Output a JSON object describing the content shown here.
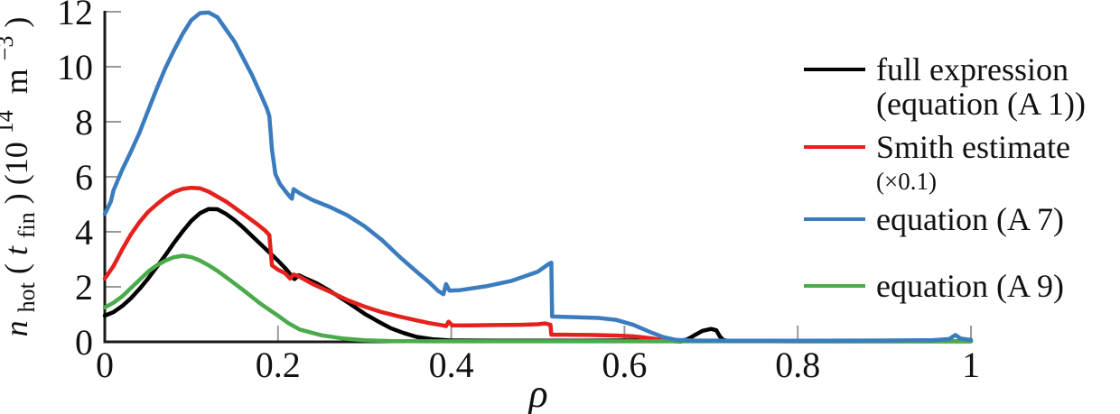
{
  "figure": {
    "background": "#ffffff",
    "axis_color": "#1a1a1a",
    "tick_color": "#999999"
  },
  "chart_data": {
    "type": "line",
    "title": "",
    "xlabel": "ρ",
    "ylabel": "n_hot(t_fin) (10^14 m^-3)",
    "ylabel_parts": [
      "n",
      "hot",
      "(",
      "t",
      "fin",
      ") (10",
      "14",
      " m",
      "−3",
      ")"
    ],
    "xlim": [
      0,
      1
    ],
    "ylim": [
      0,
      12
    ],
    "x_ticks": [
      0,
      0.2,
      0.4,
      0.6,
      0.8,
      1
    ],
    "x_tick_labels": [
      "0",
      "0.2",
      "0.4",
      "0.6",
      "0.8",
      "1"
    ],
    "y_ticks": [
      0,
      2,
      4,
      6,
      8,
      10,
      12
    ],
    "y_tick_labels": [
      "0",
      "2",
      "4",
      "6",
      "8",
      "10",
      "12"
    ],
    "grid": false,
    "legend_position": "right",
    "series": [
      {
        "name": "full expression (equation (A 1))",
        "slug": "full-expression",
        "color": "#000000",
        "points": [
          [
            0,
            0.95
          ],
          [
            0.01,
            1.08
          ],
          [
            0.02,
            1.3
          ],
          [
            0.03,
            1.58
          ],
          [
            0.04,
            1.92
          ],
          [
            0.05,
            2.3
          ],
          [
            0.06,
            2.72
          ],
          [
            0.07,
            3.15
          ],
          [
            0.08,
            3.6
          ],
          [
            0.09,
            4.02
          ],
          [
            0.1,
            4.4
          ],
          [
            0.11,
            4.68
          ],
          [
            0.12,
            4.83
          ],
          [
            0.13,
            4.82
          ],
          [
            0.14,
            4.65
          ],
          [
            0.15,
            4.42
          ],
          [
            0.16,
            4.15
          ],
          [
            0.17,
            3.85
          ],
          [
            0.18,
            3.55
          ],
          [
            0.19,
            3.25
          ],
          [
            0.2,
            2.95
          ],
          [
            0.21,
            2.62
          ],
          [
            0.216,
            2.38
          ],
          [
            0.219,
            2.28
          ],
          [
            0.224,
            2.42
          ],
          [
            0.23,
            2.33
          ],
          [
            0.245,
            2.12
          ],
          [
            0.26,
            1.85
          ],
          [
            0.28,
            1.45
          ],
          [
            0.3,
            1.02
          ],
          [
            0.315,
            0.75
          ],
          [
            0.33,
            0.5
          ],
          [
            0.345,
            0.32
          ],
          [
            0.36,
            0.18
          ],
          [
            0.38,
            0.09
          ],
          [
            0.4,
            0.05
          ],
          [
            0.45,
            0.04
          ],
          [
            0.5,
            0.04
          ],
          [
            0.55,
            0.04
          ],
          [
            0.6,
            0.05
          ],
          [
            0.64,
            0.05
          ],
          [
            0.665,
            0.05
          ],
          [
            0.672,
            0.08
          ],
          [
            0.682,
            0.26
          ],
          [
            0.69,
            0.4
          ],
          [
            0.7,
            0.47
          ],
          [
            0.706,
            0.42
          ],
          [
            0.71,
            0.2
          ],
          [
            0.714,
            0.07
          ],
          [
            0.72,
            0.03
          ],
          [
            0.8,
            0.02
          ],
          [
            0.9,
            0.02
          ],
          [
            1,
            0.02
          ]
        ]
      },
      {
        "name": "Smith estimate (×0.1)",
        "slug": "smith-estimate",
        "color": "#e4211c",
        "points": [
          [
            0,
            2.3
          ],
          [
            0.01,
            2.75
          ],
          [
            0.02,
            3.35
          ],
          [
            0.03,
            3.9
          ],
          [
            0.04,
            4.35
          ],
          [
            0.05,
            4.72
          ],
          [
            0.06,
            5.0
          ],
          [
            0.07,
            5.25
          ],
          [
            0.08,
            5.45
          ],
          [
            0.09,
            5.56
          ],
          [
            0.1,
            5.6
          ],
          [
            0.11,
            5.58
          ],
          [
            0.12,
            5.46
          ],
          [
            0.13,
            5.28
          ],
          [
            0.14,
            5.1
          ],
          [
            0.16,
            4.65
          ],
          [
            0.175,
            4.3
          ],
          [
            0.185,
            4.05
          ],
          [
            0.19,
            3.88
          ],
          [
            0.191,
            3.5
          ],
          [
            0.193,
            2.78
          ],
          [
            0.2,
            2.62
          ],
          [
            0.208,
            2.5
          ],
          [
            0.214,
            2.3
          ],
          [
            0.218,
            2.45
          ],
          [
            0.224,
            2.38
          ],
          [
            0.24,
            2.1
          ],
          [
            0.26,
            1.82
          ],
          [
            0.28,
            1.52
          ],
          [
            0.3,
            1.28
          ],
          [
            0.32,
            1.08
          ],
          [
            0.34,
            0.92
          ],
          [
            0.36,
            0.78
          ],
          [
            0.375,
            0.68
          ],
          [
            0.39,
            0.6
          ],
          [
            0.394,
            0.57
          ],
          [
            0.397,
            0.73
          ],
          [
            0.401,
            0.6
          ],
          [
            0.42,
            0.6
          ],
          [
            0.45,
            0.61
          ],
          [
            0.48,
            0.62
          ],
          [
            0.5,
            0.64
          ],
          [
            0.508,
            0.67
          ],
          [
            0.512,
            0.64
          ],
          [
            0.5145,
            0.62
          ],
          [
            0.5155,
            0.26
          ],
          [
            0.53,
            0.26
          ],
          [
            0.56,
            0.25
          ],
          [
            0.59,
            0.23
          ],
          [
            0.61,
            0.2
          ],
          [
            0.63,
            0.13
          ],
          [
            0.645,
            0.06
          ],
          [
            0.658,
            0.02
          ],
          [
            0.665,
            0.01
          ]
        ]
      },
      {
        "name": "equation (A 9)",
        "slug": "equation-a9",
        "color": "#4bab4b",
        "points": [
          [
            0,
            1.25
          ],
          [
            0.01,
            1.42
          ],
          [
            0.02,
            1.65
          ],
          [
            0.03,
            1.95
          ],
          [
            0.04,
            2.25
          ],
          [
            0.05,
            2.55
          ],
          [
            0.06,
            2.78
          ],
          [
            0.07,
            2.95
          ],
          [
            0.08,
            3.08
          ],
          [
            0.09,
            3.13
          ],
          [
            0.1,
            3.08
          ],
          [
            0.11,
            2.95
          ],
          [
            0.12,
            2.78
          ],
          [
            0.13,
            2.58
          ],
          [
            0.14,
            2.35
          ],
          [
            0.16,
            1.88
          ],
          [
            0.18,
            1.38
          ],
          [
            0.2,
            0.95
          ],
          [
            0.212,
            0.68
          ],
          [
            0.225,
            0.45
          ],
          [
            0.25,
            0.24
          ],
          [
            0.275,
            0.12
          ],
          [
            0.3,
            0.06
          ],
          [
            0.33,
            0.03
          ],
          [
            0.37,
            0.02
          ],
          [
            0.45,
            0.02
          ],
          [
            0.6,
            0.02
          ],
          [
            0.8,
            0.02
          ],
          [
            1,
            0.02
          ]
        ]
      },
      {
        "name": "equation (A 7)",
        "slug": "equation-a7",
        "color": "#3a7cbe",
        "points": [
          [
            0,
            4.65
          ],
          [
            0.004,
            4.9
          ],
          [
            0.007,
            5.1
          ],
          [
            0.01,
            5.5
          ],
          [
            0.02,
            6.25
          ],
          [
            0.03,
            6.9
          ],
          [
            0.04,
            7.6
          ],
          [
            0.05,
            8.4
          ],
          [
            0.06,
            9.2
          ],
          [
            0.07,
            9.95
          ],
          [
            0.08,
            10.6
          ],
          [
            0.09,
            11.2
          ],
          [
            0.1,
            11.7
          ],
          [
            0.11,
            11.95
          ],
          [
            0.12,
            11.97
          ],
          [
            0.13,
            11.8
          ],
          [
            0.14,
            11.35
          ],
          [
            0.15,
            10.9
          ],
          [
            0.16,
            10.3
          ],
          [
            0.17,
            9.7
          ],
          [
            0.18,
            9.0
          ],
          [
            0.187,
            8.5
          ],
          [
            0.19,
            8.2
          ],
          [
            0.193,
            7.0
          ],
          [
            0.197,
            6.1
          ],
          [
            0.202,
            5.75
          ],
          [
            0.208,
            5.5
          ],
          [
            0.213,
            5.3
          ],
          [
            0.216,
            5.2
          ],
          [
            0.218,
            5.55
          ],
          [
            0.225,
            5.4
          ],
          [
            0.24,
            5.15
          ],
          [
            0.26,
            4.9
          ],
          [
            0.28,
            4.6
          ],
          [
            0.3,
            4.2
          ],
          [
            0.32,
            3.7
          ],
          [
            0.34,
            3.1
          ],
          [
            0.36,
            2.55
          ],
          [
            0.375,
            2.15
          ],
          [
            0.385,
            1.85
          ],
          [
            0.391,
            1.73
          ],
          [
            0.394,
            2.1
          ],
          [
            0.398,
            1.86
          ],
          [
            0.41,
            1.88
          ],
          [
            0.44,
            2.02
          ],
          [
            0.47,
            2.22
          ],
          [
            0.5,
            2.55
          ],
          [
            0.512,
            2.82
          ],
          [
            0.5155,
            2.88
          ],
          [
            0.5165,
            0.92
          ],
          [
            0.54,
            0.9
          ],
          [
            0.57,
            0.87
          ],
          [
            0.59,
            0.8
          ],
          [
            0.61,
            0.62
          ],
          [
            0.63,
            0.35
          ],
          [
            0.645,
            0.17
          ],
          [
            0.66,
            0.07
          ],
          [
            0.68,
            0.05
          ],
          [
            0.72,
            0.04
          ],
          [
            0.8,
            0.04
          ],
          [
            0.9,
            0.05
          ],
          [
            0.955,
            0.06
          ],
          [
            0.975,
            0.1
          ],
          [
            0.982,
            0.25
          ],
          [
            0.988,
            0.12
          ],
          [
            1,
            0.07
          ]
        ]
      }
    ]
  },
  "legend": {
    "entries": [
      {
        "label": "full expression",
        "sublabel": "(equation (A 1))",
        "color": "#000000"
      },
      {
        "label": "Smith estimate",
        "sublabel": "(×0.1)",
        "color": "#e4211c"
      },
      {
        "label": "equation (A 7)",
        "sublabel": "",
        "color": "#3a7cbe"
      },
      {
        "label": "equation (A 9)",
        "sublabel": "",
        "color": "#4bab4b"
      }
    ]
  }
}
